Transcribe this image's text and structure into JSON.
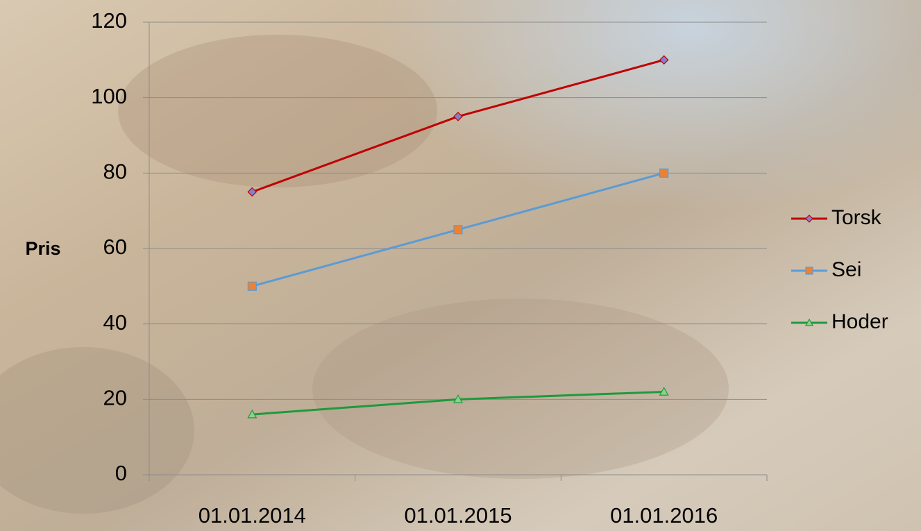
{
  "chart_data": {
    "type": "line",
    "y_label": "Pris",
    "categories": [
      "01.01.2014",
      "01.01.2015",
      "01.01.2016"
    ],
    "series": [
      {
        "name": "Torsk",
        "color": "#c00000",
        "marker": "diamond",
        "marker_color": "#8080d0",
        "values": [
          75,
          95,
          110
        ]
      },
      {
        "name": "Sei",
        "color": "#5b9bd5",
        "marker": "square",
        "marker_color": "#f08030",
        "values": [
          50,
          65,
          80
        ]
      },
      {
        "name": "Hoder",
        "color": "#1e9a3c",
        "marker": "triangle",
        "marker_color": "#8fd08f",
        "values": [
          16,
          20,
          22
        ]
      }
    ],
    "ylim": [
      0,
      120
    ],
    "yticks": [
      0,
      20,
      40,
      60,
      80,
      100,
      120
    ],
    "grid": true,
    "legend": "right"
  }
}
